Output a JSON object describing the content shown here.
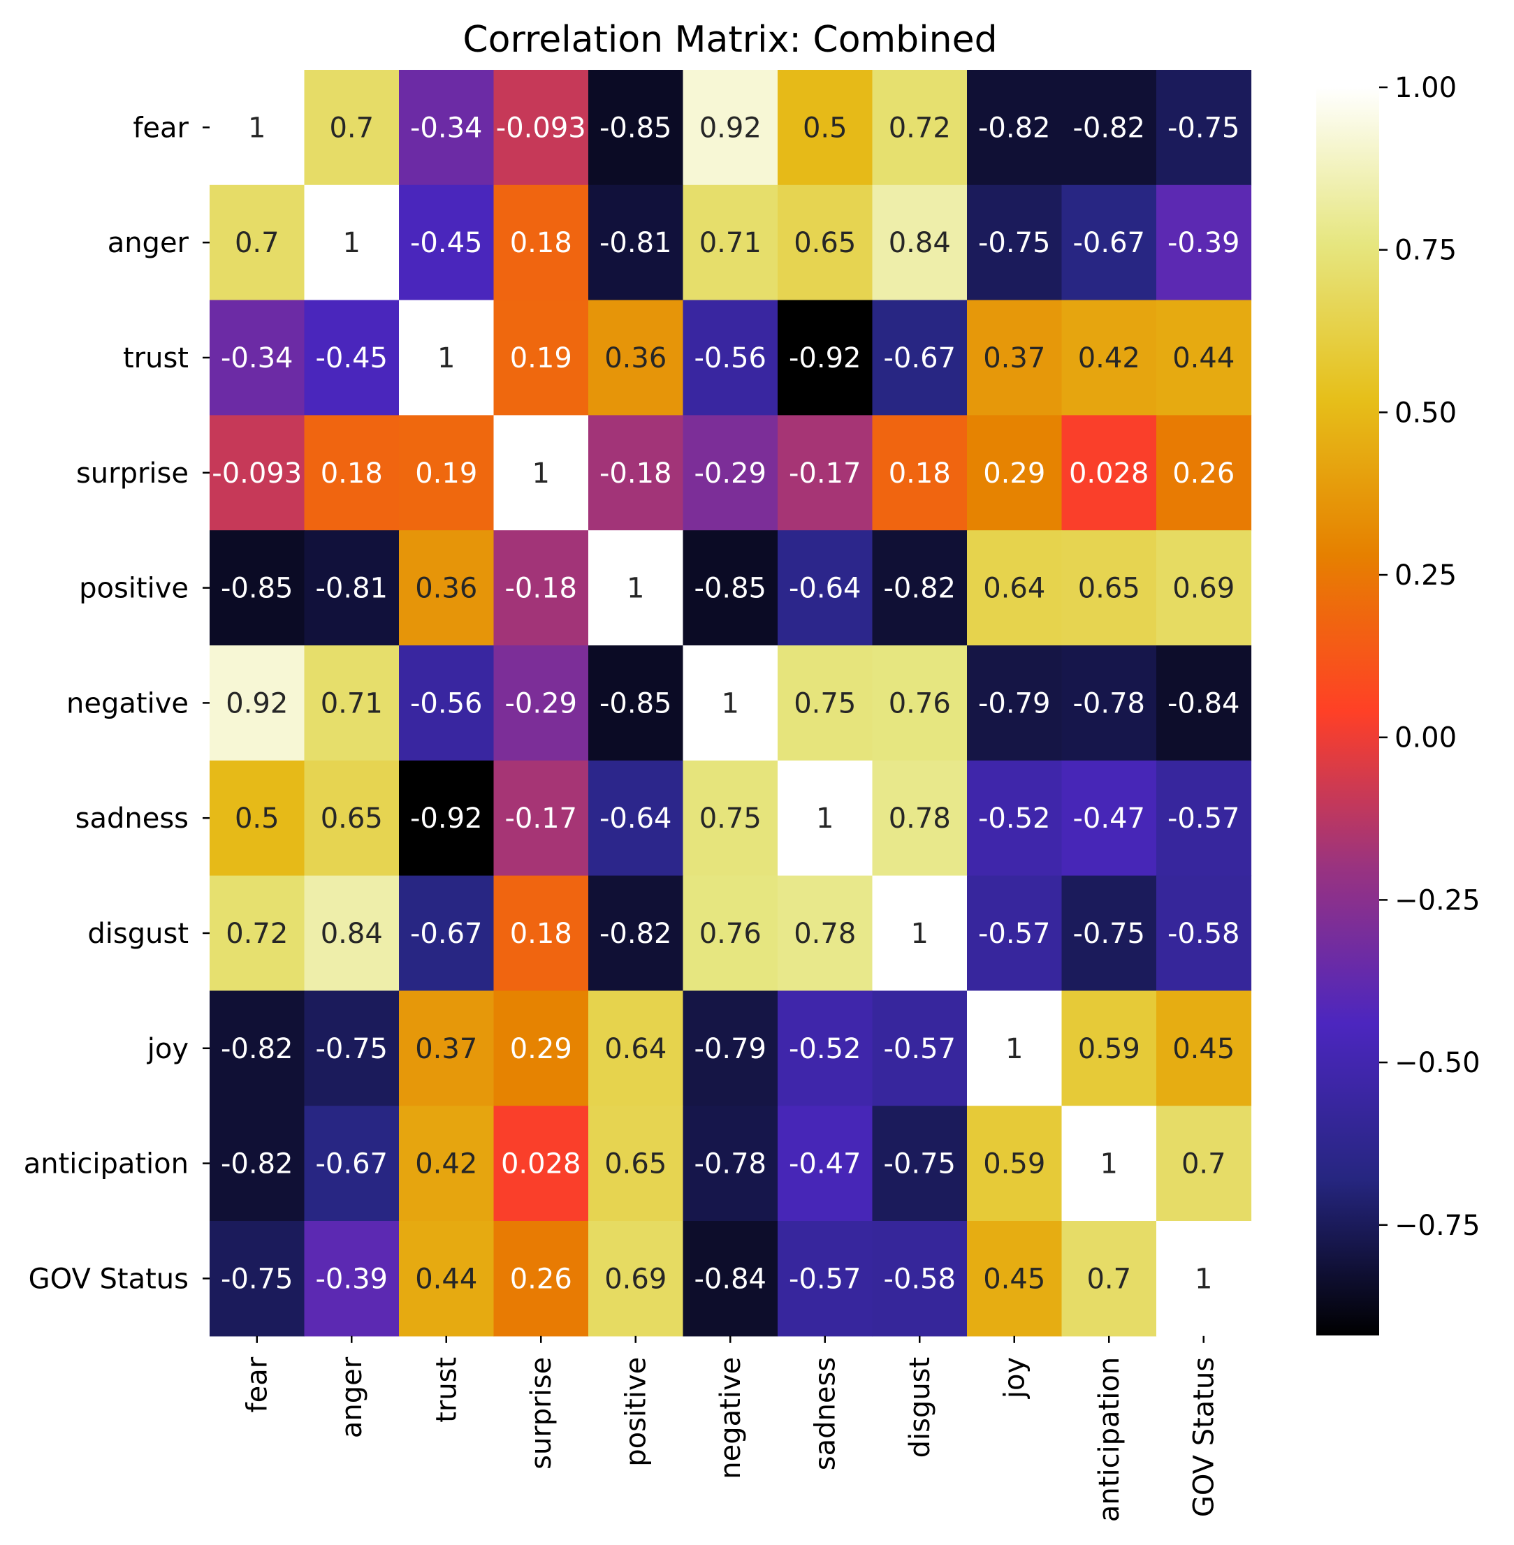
{
  "chart_data": {
    "type": "heatmap",
    "title": "Correlation Matrix: Combined",
    "xlabel": "",
    "ylabel": "",
    "labels": [
      "fear",
      "anger",
      "trust",
      "surprise",
      "positive",
      "negative",
      "sadness",
      "disgust",
      "joy",
      "anticipation",
      "GOV Status"
    ],
    "values": [
      [
        1,
        0.7,
        -0.34,
        -0.093,
        -0.85,
        0.92,
        0.5,
        0.72,
        -0.82,
        -0.82,
        -0.75
      ],
      [
        0.7,
        1,
        -0.45,
        0.18,
        -0.81,
        0.71,
        0.65,
        0.84,
        -0.75,
        -0.67,
        -0.39
      ],
      [
        -0.34,
        -0.45,
        1,
        0.19,
        0.36,
        -0.56,
        -0.92,
        -0.67,
        0.37,
        0.42,
        0.44
      ],
      [
        -0.093,
        0.18,
        0.19,
        1,
        -0.18,
        -0.29,
        -0.17,
        0.18,
        0.29,
        0.028,
        0.26
      ],
      [
        -0.85,
        -0.81,
        0.36,
        -0.18,
        1,
        -0.85,
        -0.64,
        -0.82,
        0.64,
        0.65,
        0.69
      ],
      [
        0.92,
        0.71,
        -0.56,
        -0.29,
        -0.85,
        1,
        0.75,
        0.76,
        -0.79,
        -0.78,
        -0.84
      ],
      [
        0.5,
        0.65,
        -0.92,
        -0.17,
        -0.64,
        0.75,
        1,
        0.78,
        -0.52,
        -0.47,
        -0.57
      ],
      [
        0.72,
        0.84,
        -0.67,
        0.18,
        -0.82,
        0.76,
        0.78,
        1,
        -0.57,
        -0.75,
        -0.58
      ],
      [
        -0.82,
        -0.75,
        0.37,
        0.29,
        0.64,
        -0.79,
        -0.52,
        -0.57,
        1,
        0.59,
        0.45
      ],
      [
        -0.82,
        -0.67,
        0.42,
        0.028,
        0.65,
        -0.78,
        -0.47,
        -0.75,
        0.59,
        1,
        0.7
      ],
      [
        -0.75,
        -0.39,
        0.44,
        0.26,
        0.69,
        -0.84,
        -0.57,
        -0.58,
        0.45,
        0.7,
        1
      ]
    ],
    "colorbar": {
      "colormap": "CMRmap",
      "vmin": -0.92,
      "vmax": 1.0,
      "ticks": [
        1.0,
        0.75,
        0.5,
        0.25,
        0.0,
        -0.25,
        -0.5,
        -0.75
      ],
      "tick_labels": [
        "1.00",
        "0.75",
        "0.50",
        "0.25",
        "0.00",
        "−0.25",
        "−0.50",
        "−0.75"
      ]
    }
  }
}
